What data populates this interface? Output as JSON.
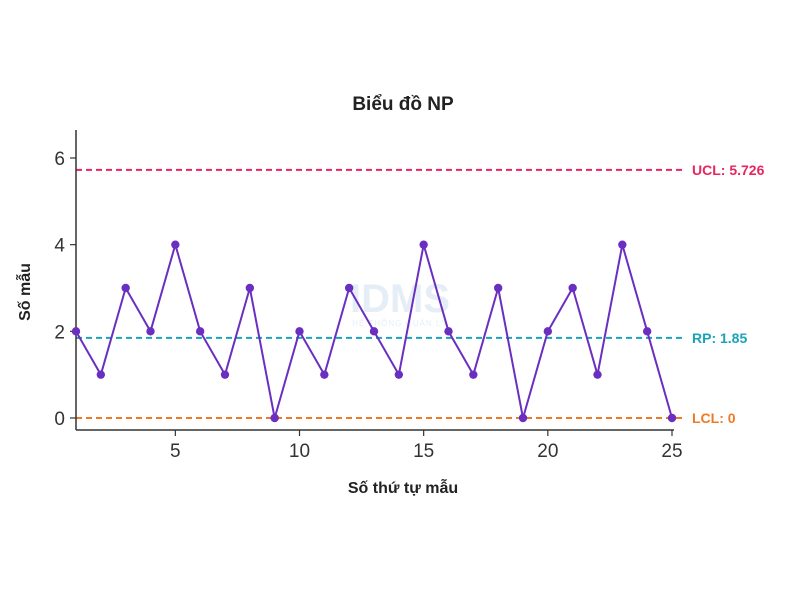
{
  "chart_data": {
    "type": "line",
    "title": "Biểu đồ NP",
    "xlabel": "Số thứ tự mẫu",
    "ylabel": "Số mẫu",
    "xlim": [
      1,
      25
    ],
    "ylim": [
      0,
      6
    ],
    "x_ticks": [
      5,
      10,
      15,
      20,
      25
    ],
    "y_ticks": [
      0,
      2,
      4,
      6
    ],
    "grid": false,
    "series": [
      {
        "x": [
          1,
          2,
          3,
          4,
          5,
          6,
          7,
          8,
          9,
          10,
          11,
          12,
          13,
          14,
          15,
          16,
          17,
          18,
          19,
          20,
          21,
          22,
          23,
          24,
          25
        ],
        "values": [
          2,
          1,
          3,
          2,
          4,
          2,
          1,
          3,
          0,
          2,
          1,
          3,
          2,
          1,
          4,
          2,
          1,
          3,
          0,
          2,
          3,
          1,
          4,
          2,
          0
        ],
        "color": "#6a2fc0"
      }
    ],
    "reference_lines": [
      {
        "label": "UCL: 5.726",
        "value": 5.726,
        "color": "#e8265e"
      },
      {
        "label": "RP: 1.85",
        "value": 1.85,
        "color": "#1aa3b8"
      },
      {
        "label": "LCL: 0",
        "value": 0,
        "color": "#ef7a23"
      }
    ]
  },
  "watermark": {
    "text": "IDMS",
    "sub": "HỆ THỐNG QUẢN LÝ"
  }
}
